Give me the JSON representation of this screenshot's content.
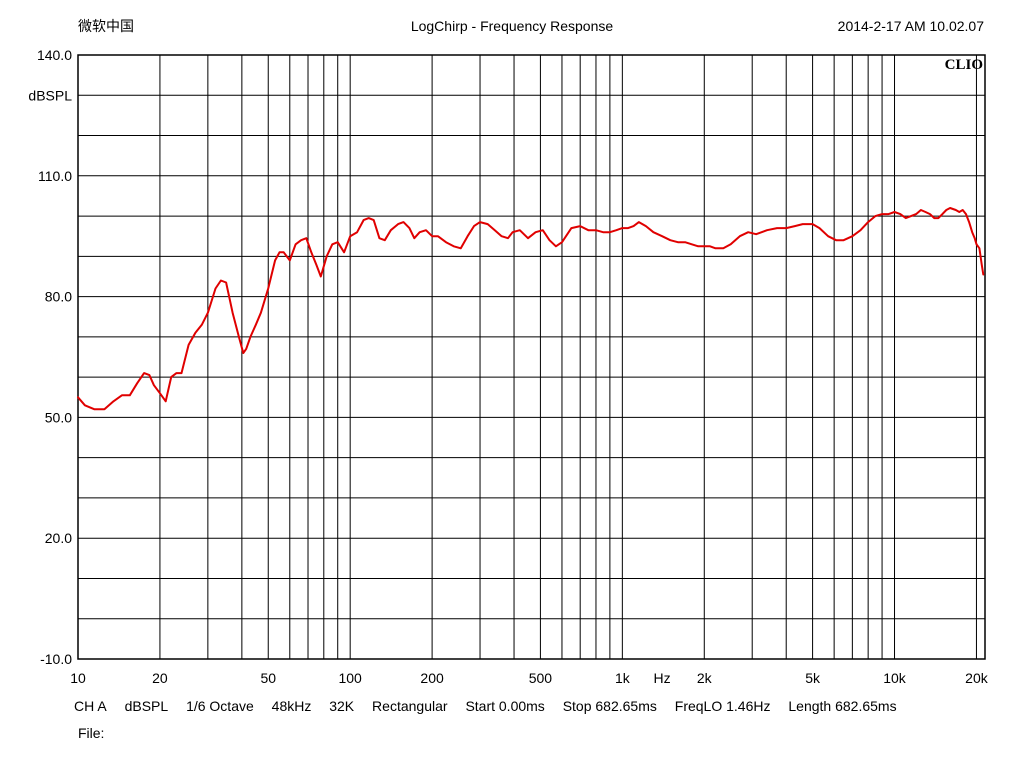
{
  "header": {
    "left": "微软中国",
    "title": "LogChirp - Frequency Response",
    "timestamp": "2014-2-17 AM 10.02.07"
  },
  "brand": "CLIO",
  "chart_data": {
    "type": "line",
    "title": "LogChirp - Frequency Response",
    "xlabel": "Hz",
    "ylabel": "dBSPL",
    "x_scale": "log",
    "xlim": [
      10,
      20000
    ],
    "ylim": [
      -10,
      140
    ],
    "grid": true,
    "y_ticks": [
      {
        "value": 140,
        "label": "140.0"
      },
      {
        "value": 110,
        "label": "110.0"
      },
      {
        "value": 80,
        "label": "80.0"
      },
      {
        "value": 50,
        "label": "50.0"
      },
      {
        "value": 20,
        "label": "20.0"
      },
      {
        "value": -10,
        "label": "-10.0"
      }
    ],
    "x_ticks": [
      {
        "value": 10,
        "label": "10"
      },
      {
        "value": 20,
        "label": "20"
      },
      {
        "value": 50,
        "label": "50"
      },
      {
        "value": 100,
        "label": "100"
      },
      {
        "value": 200,
        "label": "200"
      },
      {
        "value": 500,
        "label": "500"
      },
      {
        "value": 1000,
        "label": "1k"
      },
      {
        "value": 2000,
        "label": "2k"
      },
      {
        "value": 5000,
        "label": "5k"
      },
      {
        "value": 10000,
        "label": "10k"
      },
      {
        "value": 20000,
        "label": "20k"
      }
    ],
    "series": [
      {
        "color": "#e00000",
        "points": [
          [
            10,
            55
          ],
          [
            10.6,
            53
          ],
          [
            11.5,
            52
          ],
          [
            12.5,
            52
          ],
          [
            13.5,
            54
          ],
          [
            14.5,
            55.5
          ],
          [
            15.5,
            55.5
          ],
          [
            16.5,
            58.5
          ],
          [
            17.5,
            61
          ],
          [
            18.3,
            60.5
          ],
          [
            19,
            58
          ],
          [
            20,
            56
          ],
          [
            21,
            54
          ],
          [
            22,
            60
          ],
          [
            23,
            61
          ],
          [
            24,
            61
          ],
          [
            25.5,
            68
          ],
          [
            27,
            71
          ],
          [
            28.5,
            73
          ],
          [
            30,
            76
          ],
          [
            32,
            82
          ],
          [
            33.5,
            84
          ],
          [
            35,
            83.5
          ],
          [
            37,
            76
          ],
          [
            39,
            70
          ],
          [
            40.5,
            66
          ],
          [
            41.5,
            67
          ],
          [
            43,
            70
          ],
          [
            45,
            73
          ],
          [
            47,
            76
          ],
          [
            50,
            82
          ],
          [
            53,
            89
          ],
          [
            55,
            91
          ],
          [
            57,
            91
          ],
          [
            60,
            89
          ],
          [
            63,
            93
          ],
          [
            66,
            94
          ],
          [
            69,
            94.5
          ],
          [
            72,
            91
          ],
          [
            75,
            88
          ],
          [
            78,
            85
          ],
          [
            82,
            90
          ],
          [
            86,
            93
          ],
          [
            90,
            93.5
          ],
          [
            95,
            91
          ],
          [
            100,
            95
          ],
          [
            106,
            96
          ],
          [
            112,
            99
          ],
          [
            117,
            99.5
          ],
          [
            122,
            99
          ],
          [
            128,
            94.5
          ],
          [
            134,
            94
          ],
          [
            141,
            96.5
          ],
          [
            150,
            98
          ],
          [
            157,
            98.5
          ],
          [
            165,
            97
          ],
          [
            172,
            94.5
          ],
          [
            180,
            96
          ],
          [
            190,
            96.5
          ],
          [
            200,
            95
          ],
          [
            210,
            95
          ],
          [
            225,
            93.5
          ],
          [
            240,
            92.5
          ],
          [
            255,
            92
          ],
          [
            270,
            95
          ],
          [
            285,
            97.5
          ],
          [
            300,
            98.5
          ],
          [
            320,
            98
          ],
          [
            340,
            96.5
          ],
          [
            360,
            95
          ],
          [
            380,
            94.5
          ],
          [
            395,
            96
          ],
          [
            420,
            96.5
          ],
          [
            450,
            94.5
          ],
          [
            480,
            96
          ],
          [
            510,
            96.5
          ],
          [
            540,
            94
          ],
          [
            570,
            92.5
          ],
          [
            600,
            93.5
          ],
          [
            650,
            97
          ],
          [
            700,
            97.5
          ],
          [
            750,
            96.5
          ],
          [
            800,
            96.5
          ],
          [
            850,
            96
          ],
          [
            900,
            96
          ],
          [
            950,
            96.5
          ],
          [
            1000,
            97
          ],
          [
            1050,
            97
          ],
          [
            1100,
            97.5
          ],
          [
            1150,
            98.5
          ],
          [
            1220,
            97.5
          ],
          [
            1300,
            96
          ],
          [
            1400,
            95
          ],
          [
            1500,
            94
          ],
          [
            1600,
            93.5
          ],
          [
            1700,
            93.5
          ],
          [
            1800,
            93
          ],
          [
            1900,
            92.5
          ],
          [
            2000,
            92.5
          ],
          [
            2100,
            92.5
          ],
          [
            2200,
            92
          ],
          [
            2350,
            92
          ],
          [
            2500,
            93
          ],
          [
            2700,
            95
          ],
          [
            2900,
            96
          ],
          [
            3100,
            95.5
          ],
          [
            3400,
            96.5
          ],
          [
            3700,
            97
          ],
          [
            4000,
            97
          ],
          [
            4300,
            97.5
          ],
          [
            4600,
            98
          ],
          [
            5000,
            98
          ],
          [
            5300,
            97
          ],
          [
            5700,
            95
          ],
          [
            6100,
            94
          ],
          [
            6500,
            94
          ],
          [
            7000,
            95
          ],
          [
            7500,
            96.5
          ],
          [
            8000,
            98.5
          ],
          [
            8500,
            100
          ],
          [
            9000,
            100.5
          ],
          [
            9500,
            100.5
          ],
          [
            10000,
            101
          ],
          [
            10500,
            100.5
          ],
          [
            11000,
            99.5
          ],
          [
            11500,
            100
          ],
          [
            12000,
            100.5
          ],
          [
            12500,
            101.5
          ],
          [
            13000,
            101
          ],
          [
            13500,
            100.5
          ],
          [
            14000,
            99.5
          ],
          [
            14500,
            99.5
          ],
          [
            15000,
            100.5
          ],
          [
            15500,
            101.5
          ],
          [
            16000,
            102
          ],
          [
            16800,
            101.5
          ],
          [
            17300,
            101
          ],
          [
            17800,
            101.5
          ],
          [
            18300,
            100.5
          ],
          [
            18800,
            98.5
          ],
          [
            19300,
            96
          ],
          [
            19700,
            94.5
          ],
          [
            20000,
            93
          ],
          [
            20500,
            92
          ],
          [
            20900,
            88
          ],
          [
            21200,
            85.5
          ]
        ]
      }
    ]
  },
  "footer": {
    "channel": "CH A",
    "unit": "dBSPL",
    "smoothing": "1/6 Octave",
    "sample_rate": "48kHz",
    "fft_size": "32K",
    "window": "Rectangular",
    "start": "Start 0.00ms",
    "stop": "Stop 682.65ms",
    "freq_lo": "FreqLO 1.46Hz",
    "length": "Length 682.65ms"
  },
  "file_label": "File:"
}
